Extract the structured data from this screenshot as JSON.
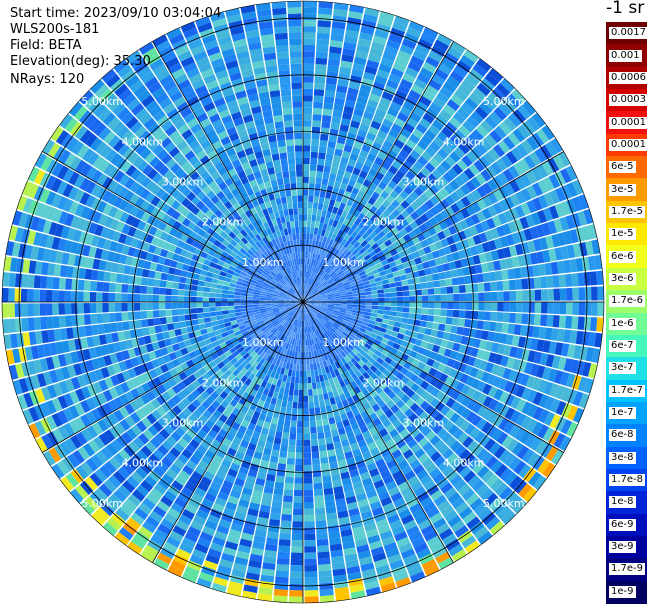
{
  "info": {
    "start_time": "Start time: 2023/09/10 03:04:04",
    "instrument": "WLS200s-181",
    "field": "Field: BETA",
    "elevation": "Elevation(deg): 35.30",
    "nrays": "NRays: 120"
  },
  "colorbar": {
    "title": "-1 sr",
    "labels": [
      "0.0017",
      "0.001",
      "0.0006",
      "0.0003",
      "0.00017",
      "0.0001",
      "6e-5",
      "3e-5",
      "1.7e-5",
      "1e-5",
      "6e-6",
      "3e-6",
      "1.7e-6",
      "1e-6",
      "6e-7",
      "3e-7",
      "1.7e-7",
      "1e-7",
      "6e-8",
      "3e-8",
      "1.7e-8",
      "1e-8",
      "6e-9",
      "3e-9",
      "1.7e-9",
      "1e-9"
    ],
    "colors": [
      "#6e0000",
      "#8f0000",
      "#b00000",
      "#d40000",
      "#f01010",
      "#ff3a00",
      "#ff6a00",
      "#ff9a00",
      "#ffc400",
      "#ffe800",
      "#f2ff1a",
      "#c8ff40",
      "#9cff6a",
      "#70ff94",
      "#46f8bd",
      "#1ee0e6",
      "#00c3ff",
      "#00a3ff",
      "#0083ff",
      "#0063ff",
      "#0043f0",
      "#0025d8",
      "#000fbc",
      "#00009e",
      "#000080",
      "#000062"
    ]
  },
  "chart_data": {
    "type": "heatmap",
    "projection": "polar (PPI scan)",
    "field": "BETA",
    "nrays": 120,
    "range_rings_km": [
      1,
      2,
      3,
      4,
      5
    ],
    "ring_labels": [
      "1.00km",
      "2.00km",
      "3.00km",
      "4.00km",
      "5.00km"
    ],
    "max_range_km": 5.3,
    "spoke_step_deg": 30,
    "value_range": [
      1e-09,
      0.0017
    ],
    "dominant_value_approx": 1.7e-08,
    "edge_value_approx": 3e-05
  }
}
